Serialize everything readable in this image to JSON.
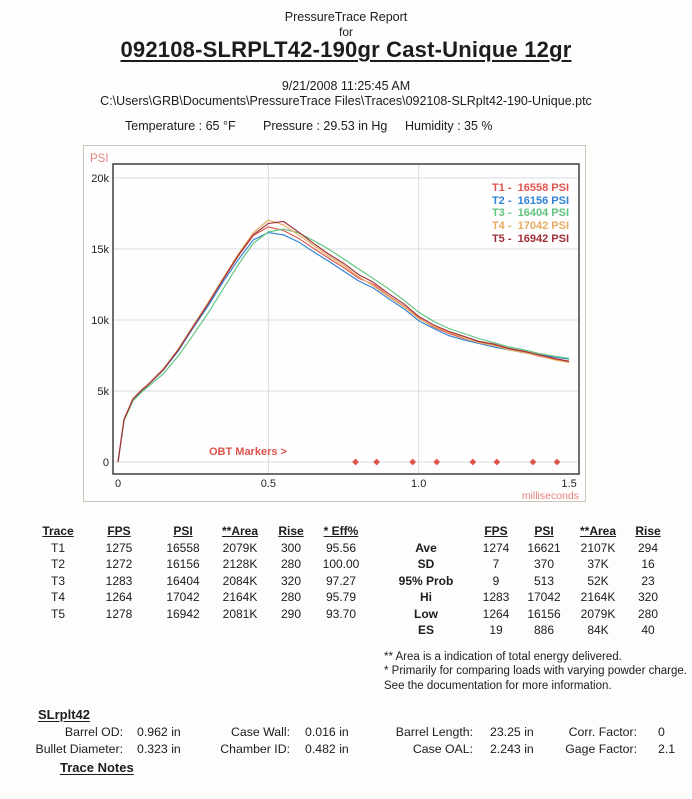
{
  "header": {
    "report_title": "PressureTrace Report",
    "for_text": "for",
    "load_title": "092108-SLRPLT42-190gr Cast-Unique 12gr",
    "datetime": "9/21/2008 11:25:45 AM",
    "file_path": "C:\\Users\\GRB\\Documents\\PressureTrace Files\\Traces\\092108-SLRplt42-190-Unique.ptc",
    "conditions": [
      {
        "label": "Temperature",
        "value": "65 °F"
      },
      {
        "label": "Pressure",
        "value": "29.53 in Hg"
      },
      {
        "label": "Humidity",
        "value": "35 %"
      }
    ]
  },
  "chart_data": {
    "type": "line",
    "title": "",
    "xlabel": "milliseconds",
    "ylabel": "PSI",
    "xlim": [
      0,
      1.55
    ],
    "ylim": [
      0,
      21000
    ],
    "grid": true,
    "legend_position": "top-right",
    "colors": {
      "grid": "#d9dcde",
      "frame": "#4a4a4a",
      "axis_label": "#e8837b",
      "obt": "#dd544c",
      "tick_text": "#222222"
    },
    "xticks": [
      {
        "v": 0,
        "label": "0"
      },
      {
        "v": 0.5,
        "label": "0.5"
      },
      {
        "v": 1.0,
        "label": "1.0"
      },
      {
        "v": 1.5,
        "label": "1.5"
      }
    ],
    "yticks": [
      {
        "v": 0,
        "label": "0"
      },
      {
        "v": 5000,
        "label": "5k"
      },
      {
        "v": 10000,
        "label": "10k"
      },
      {
        "v": 15000,
        "label": "15k"
      },
      {
        "v": 20000,
        "label": "20k"
      }
    ],
    "obt": {
      "label": "OBT Markers >",
      "x": [
        0.79,
        0.86,
        0.98,
        1.06,
        1.18,
        1.26,
        1.38,
        1.46
      ]
    },
    "x": [
      0,
      0.02,
      0.05,
      0.08,
      0.1,
      0.15,
      0.2,
      0.25,
      0.3,
      0.35,
      0.4,
      0.45,
      0.5,
      0.55,
      0.6,
      0.65,
      0.7,
      0.75,
      0.8,
      0.85,
      0.9,
      0.95,
      1.0,
      1.05,
      1.1,
      1.15,
      1.2,
      1.25,
      1.3,
      1.35,
      1.4,
      1.45,
      1.5
    ],
    "series": [
      {
        "id": "t1",
        "name": "T1",
        "peak_psi": 16558,
        "legend": "T1 -  16558 PSI",
        "color": "#e1554e",
        "psi": [
          0,
          3000,
          4480,
          5100,
          5480,
          6550,
          7900,
          9600,
          11200,
          12850,
          14500,
          15950,
          16558,
          16300,
          15750,
          15050,
          14350,
          13700,
          12950,
          12500,
          11700,
          11000,
          10150,
          9500,
          9050,
          8700,
          8450,
          8250,
          7950,
          7750,
          7450,
          7250,
          7050
        ]
      },
      {
        "id": "t2",
        "name": "T2",
        "peak_psi": 16156,
        "legend": "T2 -  16156 PSI",
        "color": "#2f82d6",
        "psi": [
          0,
          2950,
          4420,
          5050,
          5420,
          6450,
          7800,
          9450,
          11000,
          12700,
          14250,
          15650,
          16156,
          16000,
          15500,
          14800,
          14150,
          13450,
          12750,
          12250,
          11500,
          10800,
          9950,
          9400,
          8900,
          8600,
          8350,
          8100,
          7900,
          7700,
          7550,
          7400,
          7250
        ]
      },
      {
        "id": "t3",
        "name": "T3",
        "peak_psi": 16404,
        "legend": "T3 -  16404 PSI",
        "color": "#5ec47e",
        "psi": [
          0,
          2900,
          4300,
          4950,
          5300,
          6200,
          7450,
          8950,
          10500,
          12200,
          13900,
          15400,
          16200,
          16404,
          16150,
          15600,
          15000,
          14300,
          13600,
          12900,
          12200,
          11400,
          10550,
          9900,
          9400,
          9050,
          8700,
          8400,
          8100,
          7900,
          7650,
          7450,
          7300
        ]
      },
      {
        "id": "t4",
        "name": "T4",
        "peak_psi": 17042,
        "legend": "T4 -  17042 PSI",
        "color": "#e7ac62",
        "psi": [
          0,
          3020,
          4460,
          5120,
          5470,
          6520,
          7950,
          9580,
          11250,
          12950,
          14650,
          16150,
          17042,
          16700,
          16000,
          15250,
          14500,
          13850,
          13050,
          12400,
          11650,
          10950,
          10100,
          9550,
          9150,
          8750,
          8400,
          8200,
          7900,
          7700,
          7500,
          7200,
          7000
        ]
      },
      {
        "id": "t5",
        "name": "T5",
        "peak_psi": 16942,
        "legend": "T5 -  16942 PSI",
        "color": "#a03038",
        "psi": [
          0,
          2980,
          4440,
          5080,
          5440,
          6480,
          7880,
          9520,
          11150,
          12880,
          14550,
          16000,
          16800,
          16942,
          16200,
          15400,
          14650,
          14000,
          13200,
          12650,
          11850,
          11150,
          10250,
          9650,
          9200,
          8850,
          8500,
          8300,
          8000,
          7800,
          7550,
          7300,
          7100
        ]
      }
    ]
  },
  "left_table": {
    "headers": [
      "Trace",
      "FPS",
      "PSI",
      "**Area",
      "Rise",
      "* Eff%"
    ],
    "rows": [
      [
        "T1",
        "1275",
        "16558",
        "2079K",
        "300",
        "95.56"
      ],
      [
        "T2",
        "1272",
        "16156",
        "2128K",
        "280",
        "100.00"
      ],
      [
        "T3",
        "1283",
        "16404",
        "2084K",
        "320",
        "97.27"
      ],
      [
        "T4",
        "1264",
        "17042",
        "2164K",
        "280",
        "95.79"
      ],
      [
        "T5",
        "1278",
        "16942",
        "2081K",
        "290",
        "93.70"
      ]
    ]
  },
  "stats_table": {
    "headers": [
      "FPS",
      "PSI",
      "**Area",
      "Rise"
    ],
    "rows": [
      {
        "label": "Ave",
        "values": [
          "1274",
          "16621",
          "2107K",
          "294"
        ]
      },
      {
        "label": "SD",
        "values": [
          "7",
          "370",
          "37K",
          "16"
        ]
      },
      {
        "label": "95% Prob",
        "values": [
          "9",
          "513",
          "52K",
          "23"
        ]
      },
      {
        "label": "Hi",
        "values": [
          "1283",
          "17042",
          "2164K",
          "320"
        ]
      },
      {
        "label": "Low",
        "values": [
          "1264",
          "16156",
          "2079K",
          "280"
        ]
      },
      {
        "label": "ES",
        "values": [
          "19",
          "886",
          "84K",
          "40"
        ]
      }
    ]
  },
  "footnotes": [
    "** Area is a indication of total energy delivered.",
    "* Primarily for comparing loads with varying powder charge.",
    "See the documentation for more information."
  ],
  "specs": {
    "name": "SLrplt42",
    "rows": [
      [
        {
          "label": "Barrel OD:",
          "value": "0.962 in"
        },
        {
          "label": "Case Wall:",
          "value": "0.016 in"
        },
        {
          "label": "Barrel Length:",
          "value": "23.25 in"
        },
        {
          "label": "Corr. Factor:",
          "value": "0"
        }
      ],
      [
        {
          "label": "Bullet Diameter:",
          "value": "0.323 in"
        },
        {
          "label": "Chamber ID:",
          "value": "0.482 in"
        },
        {
          "label": "Case OAL:",
          "value": "2.243 in"
        },
        {
          "label": "Gage Factor:",
          "value": "2.1"
        }
      ]
    ],
    "trace_notes_label": "Trace Notes"
  }
}
